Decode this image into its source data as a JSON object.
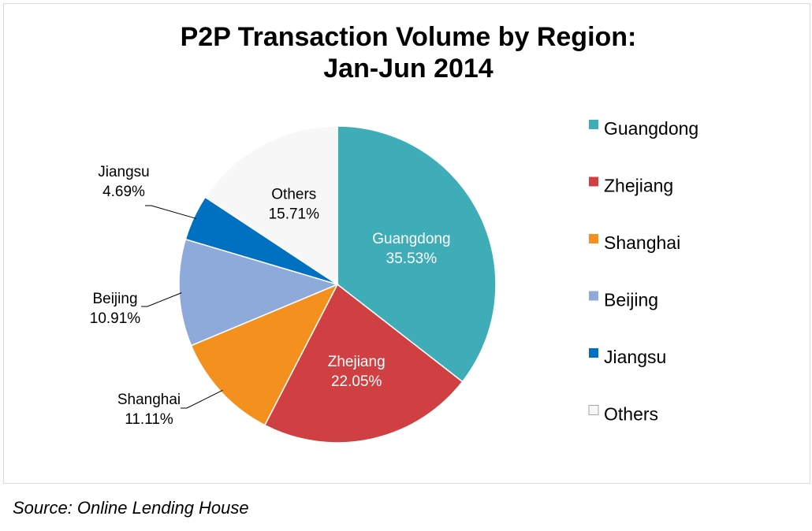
{
  "chart_data": {
    "type": "pie",
    "title": "P2P Transaction Volume by Region:",
    "subtitle": "Jan-Jun 2014",
    "unit": "%",
    "legend_position": "right",
    "slices": [
      {
        "name": "Guangdong",
        "value": 35.53,
        "label": "35.53%",
        "color": "#3fadb8",
        "label_color": "#ffffff",
        "label_placement": "inside"
      },
      {
        "name": "Zhejiang",
        "value": 22.05,
        "label": "22.05%",
        "color": "#d04042",
        "label_color": "#ffffff",
        "label_placement": "inside"
      },
      {
        "name": "Shanghai",
        "value": 11.11,
        "label": "11.11%",
        "color": "#f4901e",
        "label_color": "#000000",
        "label_placement": "outside"
      },
      {
        "name": "Beijing",
        "value": 10.91,
        "label": "10.91%",
        "color": "#8eaadb",
        "label_color": "#000000",
        "label_placement": "outside"
      },
      {
        "name": "Jiangsu",
        "value": 4.69,
        "label": "4.69%",
        "color": "#0070c0",
        "label_color": "#000000",
        "label_placement": "outside"
      },
      {
        "name": "Others",
        "value": 15.71,
        "label": "15.71%",
        "color": "#f7f7f7",
        "label_color": "#000000",
        "label_placement": "inside"
      }
    ]
  },
  "source": {
    "text": "Source: Online Lending House"
  }
}
